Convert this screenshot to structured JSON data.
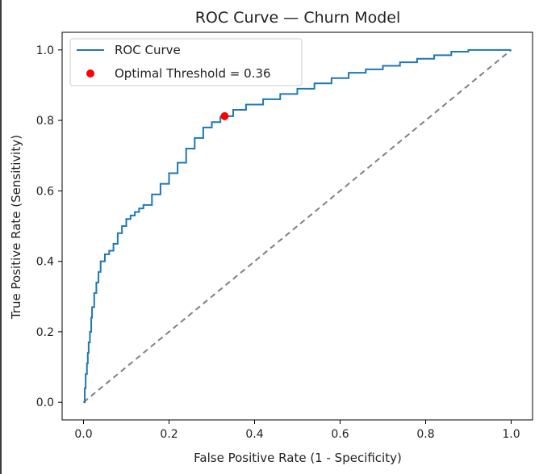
{
  "chart_data": {
    "type": "line",
    "title": "ROC Curve — Churn Model",
    "xlabel": "False Positive Rate (1 - Specificity)",
    "ylabel": "True Positive Rate (Sensitivity)",
    "xlim": [
      -0.05,
      1.05
    ],
    "ylim": [
      -0.05,
      1.05
    ],
    "xticks": [
      0.0,
      0.2,
      0.4,
      0.6,
      0.8,
      1.0
    ],
    "xtick_labels": [
      "0.0",
      "0.2",
      "0.4",
      "0.6",
      "0.8",
      "1.0"
    ],
    "yticks": [
      0.0,
      0.2,
      0.4,
      0.6,
      0.8,
      1.0
    ],
    "ytick_labels": [
      "0.0",
      "0.2",
      "0.4",
      "0.6",
      "0.8",
      "1.0"
    ],
    "grid": false,
    "legend_position": "top-left",
    "series": [
      {
        "name": "ROC Curve",
        "color": "#1f77b4",
        "x": [
          0.0,
          0.003,
          0.005,
          0.008,
          0.01,
          0.012,
          0.015,
          0.018,
          0.02,
          0.025,
          0.03,
          0.035,
          0.04,
          0.05,
          0.06,
          0.07,
          0.08,
          0.09,
          0.1,
          0.11,
          0.12,
          0.13,
          0.14,
          0.16,
          0.18,
          0.2,
          0.22,
          0.24,
          0.26,
          0.28,
          0.3,
          0.32,
          0.33,
          0.35,
          0.38,
          0.42,
          0.46,
          0.5,
          0.54,
          0.58,
          0.62,
          0.66,
          0.7,
          0.74,
          0.78,
          0.82,
          0.86,
          0.9,
          0.95,
          1.0
        ],
        "y": [
          0.0,
          0.04,
          0.08,
          0.11,
          0.14,
          0.17,
          0.2,
          0.24,
          0.27,
          0.31,
          0.34,
          0.37,
          0.4,
          0.42,
          0.43,
          0.45,
          0.48,
          0.5,
          0.52,
          0.53,
          0.54,
          0.55,
          0.56,
          0.59,
          0.62,
          0.65,
          0.68,
          0.72,
          0.75,
          0.78,
          0.795,
          0.81,
          0.812,
          0.83,
          0.845,
          0.86,
          0.875,
          0.89,
          0.905,
          0.92,
          0.935,
          0.945,
          0.955,
          0.965,
          0.975,
          0.985,
          0.995,
          1.0,
          1.0,
          1.0
        ]
      },
      {
        "name": "Optimal Threshold = 0.36",
        "color": "#ff0000",
        "type": "scatter",
        "x": [
          0.33
        ],
        "y": [
          0.812
        ]
      },
      {
        "name": "",
        "color": "#808080",
        "type": "line",
        "style": "dashed",
        "x": [
          0.0,
          1.0
        ],
        "y": [
          0.0,
          1.0
        ]
      }
    ]
  }
}
